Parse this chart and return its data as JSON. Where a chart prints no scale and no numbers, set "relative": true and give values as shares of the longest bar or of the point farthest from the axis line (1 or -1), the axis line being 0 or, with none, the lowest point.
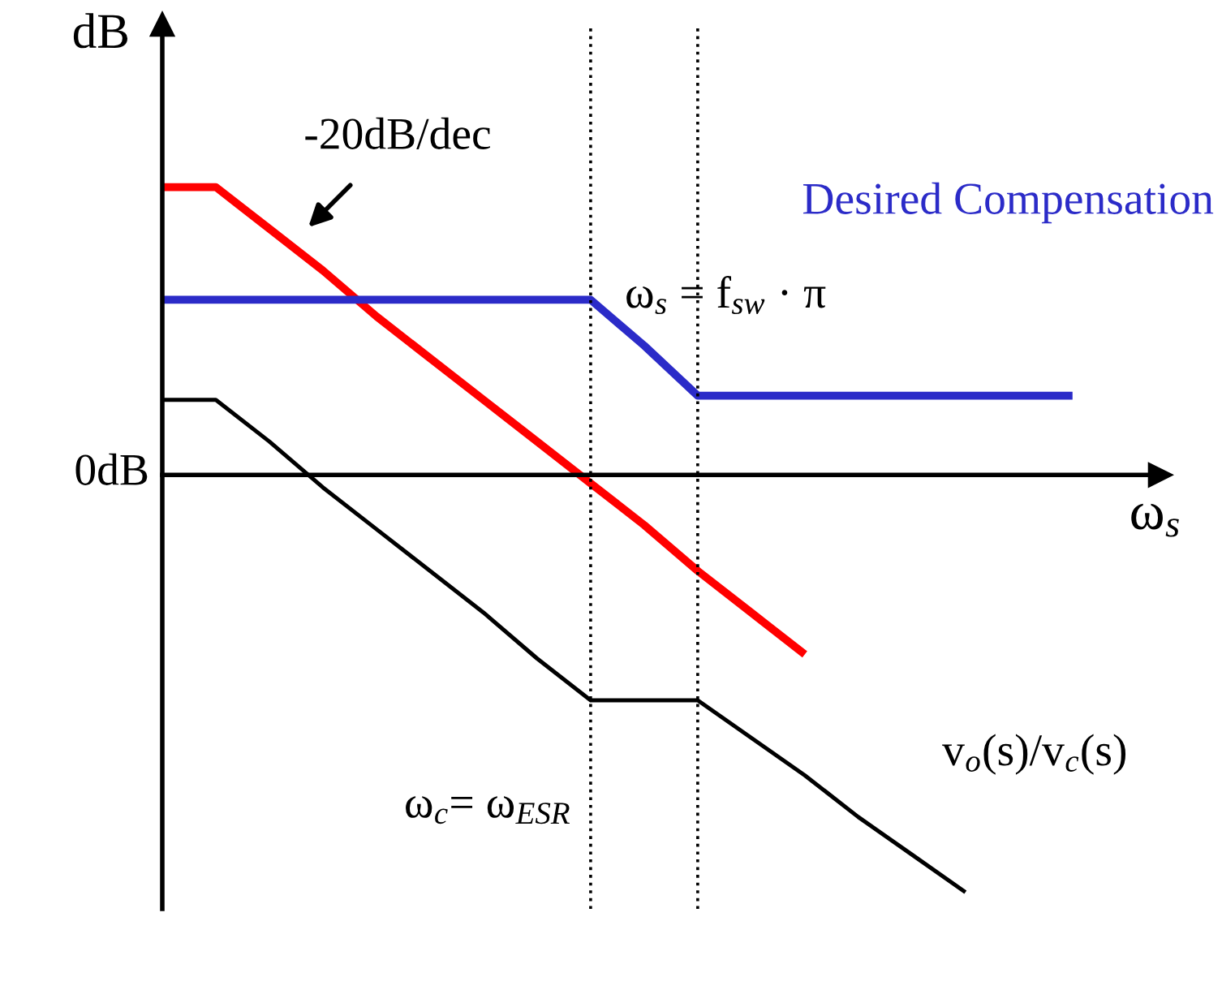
{
  "chart_data": {
    "type": "line",
    "relative": true,
    "ylabel": "dB",
    "xlabel": "ω$_{s}$",
    "legend": false,
    "marker": "none",
    "line_style": "solid",
    "categories": [
      null,
      null,
      null,
      null,
      null,
      null,
      null,
      null,
      null,
      null,
      null,
      null,
      null,
      null,
      null,
      null,
      null,
      null,
      null
    ],
    "series": [
      {
        "color": "#ff0000",
        "values": [
          0.69,
          0.69,
          0.59,
          0.49,
          0.38,
          0.28,
          0.18,
          0.08,
          -0.02,
          -0.12,
          -0.23,
          -0.33,
          -0.43,
          null,
          null,
          null,
          null,
          null,
          null
        ]
      },
      {
        "name": "Desired Compensation",
        "color": "#2b2bc8",
        "values": [
          0.42,
          0.42,
          0.42,
          0.42,
          0.42,
          0.42,
          0.42,
          0.42,
          0.42,
          0.31,
          0.19,
          0.19,
          0.19,
          0.19,
          0.19,
          0.19,
          0.19,
          0.19,
          null
        ]
      },
      {
        "name": "v$_{o}$(s)/v$_{c}$(s)",
        "color": "#000000",
        "values": [
          0.18,
          0.18,
          0.08,
          -0.03,
          -0.13,
          -0.23,
          -0.33,
          -0.44,
          -0.54,
          -0.54,
          -0.54,
          -0.63,
          -0.72,
          -0.82,
          -0.91,
          -1,
          null,
          null,
          null
        ]
      }
    ],
    "annotations": [
      "-20dB/dec",
      "0dB",
      "ω$_{s}$ = f$_{sw}$ · π",
      "ω$_{c}$= ω$_{ESR}$"
    ]
  }
}
